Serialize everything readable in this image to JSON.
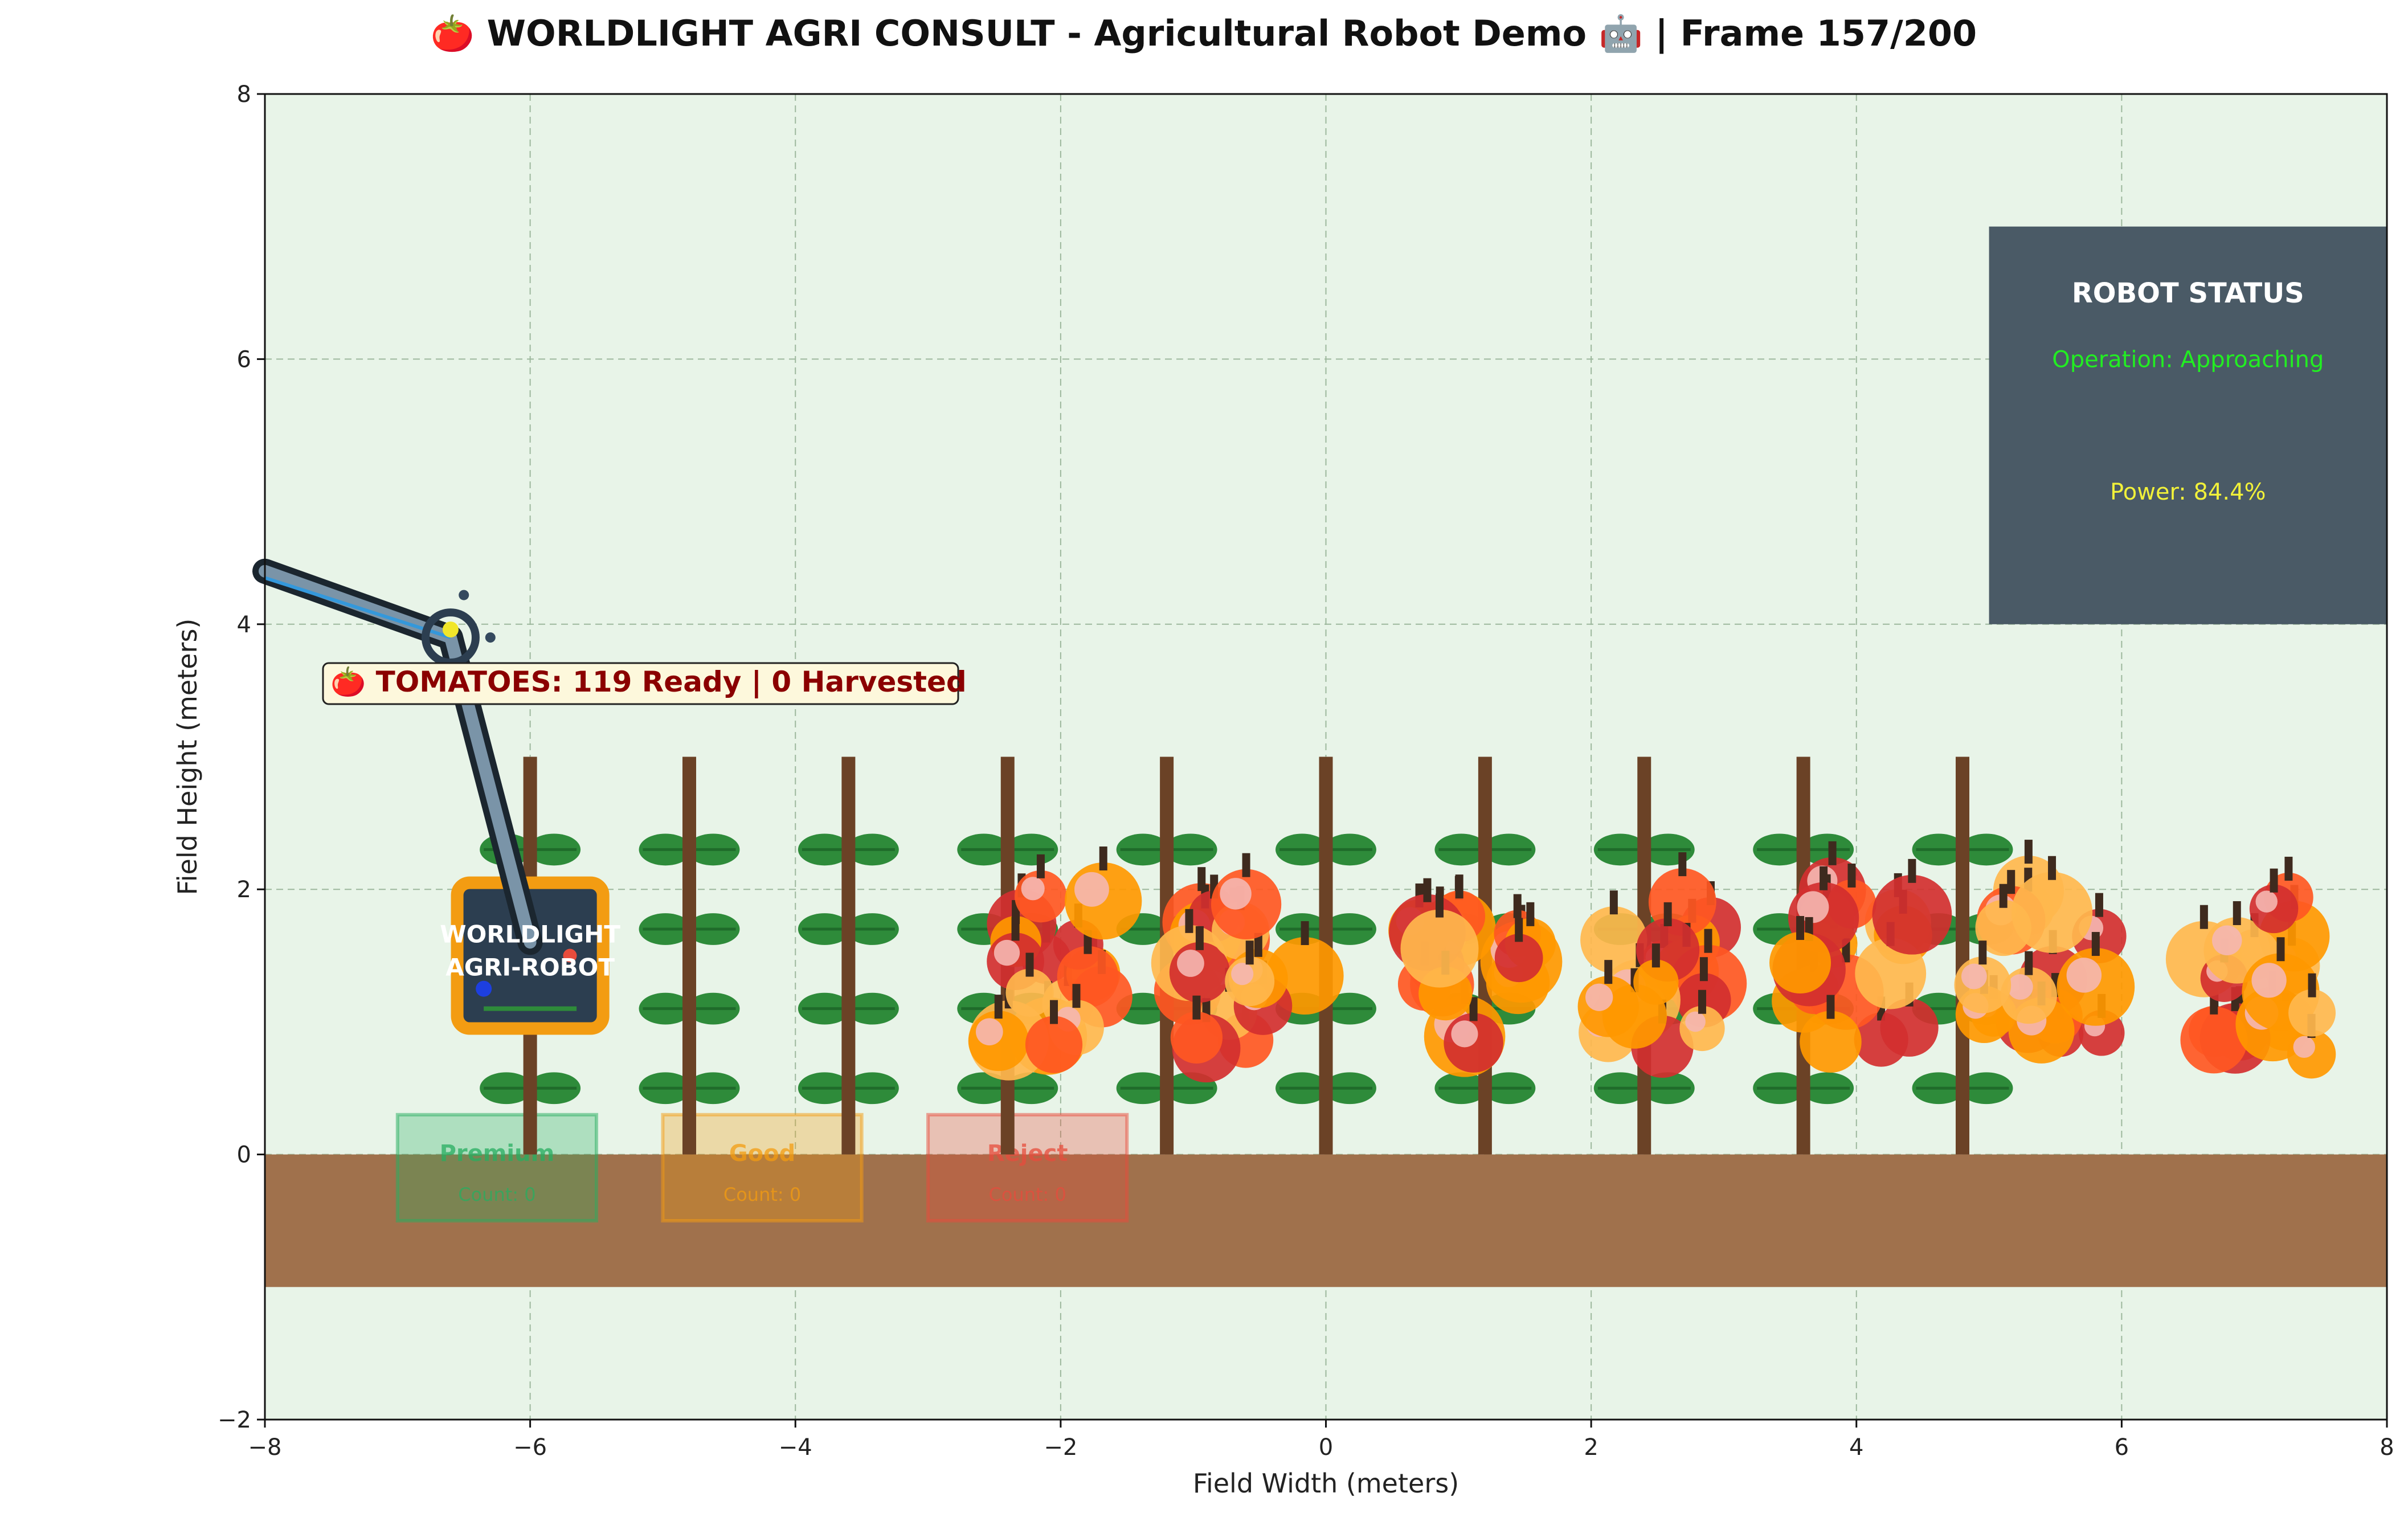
{
  "chart_data": {
    "type": "scatter",
    "title": "🍅 WORLDLIGHT AGRI CONSULT - Agricultural Robot Demo 🤖 | Frame 157/200",
    "xlabel": "Field Width (meters)",
    "ylabel": "Field Height (meters)",
    "xlim": [
      -8,
      8
    ],
    "ylim": [
      -2,
      8
    ],
    "xticks": [
      -8,
      -6,
      -4,
      -2,
      0,
      2,
      4,
      6,
      8
    ],
    "yticks": [
      -2,
      0,
      2,
      4,
      6,
      8
    ],
    "xtick_labels": [
      "−8",
      "−6",
      "−4",
      "−2",
      "0",
      "2",
      "4",
      "6",
      "8"
    ],
    "ytick_labels": [
      "−2",
      "0",
      "2",
      "4",
      "6",
      "8"
    ],
    "grid": true,
    "background_color": "#e8f4e8",
    "soil": {
      "y_range": [
        -1,
        0
      ],
      "color": "#a0714c"
    },
    "plants": {
      "stem_x": [
        -6,
        -4.8,
        -3.6,
        -2.4,
        -1.2,
        0,
        1.2,
        2.4,
        3.6,
        4.8
      ],
      "stem_y_range": [
        0,
        3
      ],
      "leaf_y": [
        0.5,
        1.1,
        1.7,
        2.3
      ],
      "stem_color": "#6b4226",
      "leaf_color": "#2e8b3a"
    },
    "tomato_clusters": [
      {
        "x": -2.1,
        "y": 1.4
      },
      {
        "x": -0.6,
        "y": 1.4
      },
      {
        "x": 1.1,
        "y": 1.4
      },
      {
        "x": 2.5,
        "y": 1.35
      },
      {
        "x": 4.0,
        "y": 1.45
      },
      {
        "x": 5.4,
        "y": 1.5
      },
      {
        "x": 7.0,
        "y": 1.35
      }
    ],
    "tomato_colors": [
      "#d32f2f",
      "#ff5722",
      "#ff9800",
      "#ffb74d"
    ],
    "robot": {
      "label_line1": "WORLDLIGHT",
      "label_line2": "AGRI-ROBOT",
      "body_center": [
        -6.0,
        1.5
      ],
      "arm_joints": [
        [
          -8.0,
          4.4
        ],
        [
          -6.6,
          3.9
        ],
        [
          -6.0,
          1.6
        ]
      ],
      "body_color": "#2c3e50",
      "border_color": "#f39c12",
      "arm_color": "#2c3e50"
    },
    "tomato_counter": "🍅 TOMATOES: 119 Ready | 0 Harvested",
    "status_panel": {
      "title": "ROBOT STATUS",
      "operation": "Operation: Approaching",
      "power": "Power: 84.4%",
      "color": "#4a5a66"
    },
    "bins": [
      {
        "label": "Premium",
        "count": "Count: 0",
        "color": "#27ae60",
        "x_center": -6.25
      },
      {
        "label": "Good",
        "count": "Count: 0",
        "color": "#f39c12",
        "x_center": -4.25
      },
      {
        "label": "Reject",
        "count": "Count: 0",
        "color": "#e74c3c",
        "x_center": -2.25
      }
    ]
  }
}
